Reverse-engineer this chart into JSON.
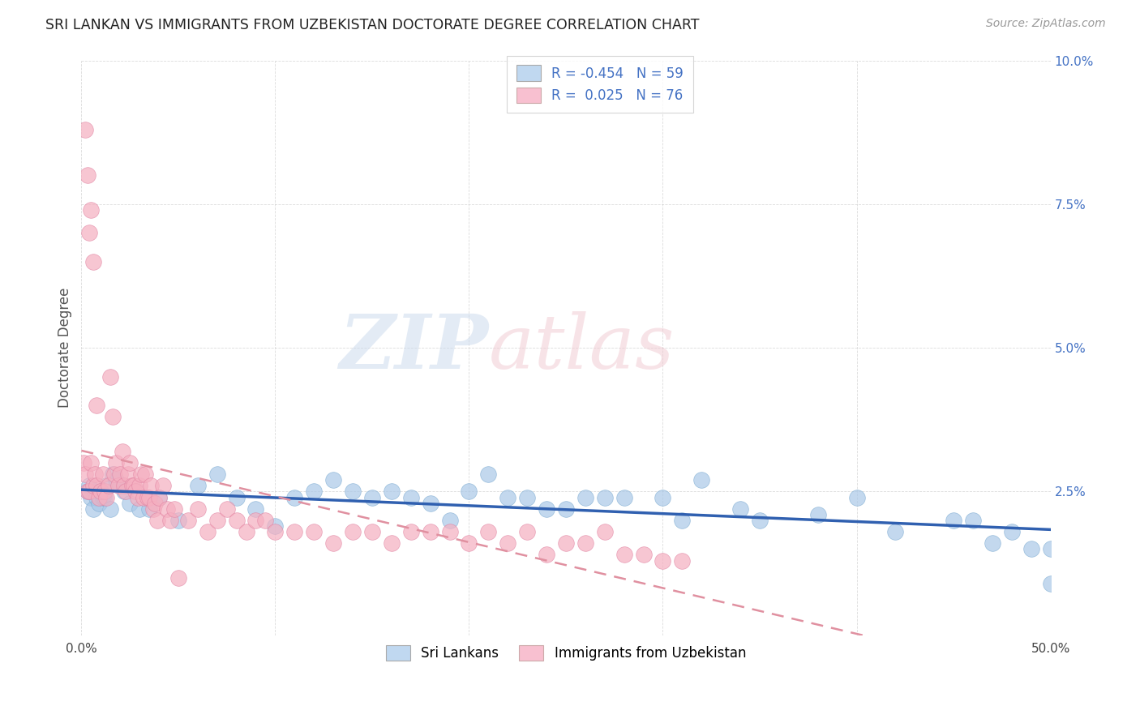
{
  "title": "SRI LANKAN VS IMMIGRANTS FROM UZBEKISTAN DOCTORATE DEGREE CORRELATION CHART",
  "source": "Source: ZipAtlas.com",
  "ylabel": "Doctorate Degree",
  "xlim": [
    0.0,
    0.5
  ],
  "ylim": [
    0.0,
    0.1
  ],
  "xticks": [
    0.0,
    0.1,
    0.2,
    0.3,
    0.4,
    0.5
  ],
  "xticklabels": [
    "0.0%",
    "",
    "",
    "",
    "",
    "50.0%"
  ],
  "yticks": [
    0.0,
    0.025,
    0.05,
    0.075,
    0.1
  ],
  "yticklabels_right": [
    "",
    "2.5%",
    "5.0%",
    "7.5%",
    "10.0%"
  ],
  "sri_lanka_R": -0.454,
  "sri_lanka_N": 59,
  "uzbekistan_R": 0.025,
  "uzbekistan_N": 76,
  "sri_lanka_color": "#aac8e8",
  "uzbekistan_color": "#f5afc0",
  "sri_lanka_edge_color": "#7aaad0",
  "uzbekistan_edge_color": "#e080a0",
  "sri_lanka_line_color": "#3060b0",
  "uzbekistan_line_color": "#e090a0",
  "background_color": "#ffffff",
  "grid_color": "#cccccc",
  "legend_blue_fill": "#c0d8f0",
  "legend_pink_fill": "#f8c0d0",
  "sri_lankans_x": [
    0.003,
    0.004,
    0.005,
    0.006,
    0.007,
    0.008,
    0.009,
    0.01,
    0.011,
    0.012,
    0.013,
    0.015,
    0.016,
    0.018,
    0.02,
    0.022,
    0.025,
    0.03,
    0.035,
    0.04,
    0.05,
    0.06,
    0.07,
    0.08,
    0.09,
    0.1,
    0.11,
    0.12,
    0.13,
    0.14,
    0.15,
    0.16,
    0.17,
    0.18,
    0.19,
    0.2,
    0.21,
    0.22,
    0.23,
    0.24,
    0.25,
    0.26,
    0.27,
    0.28,
    0.3,
    0.31,
    0.32,
    0.34,
    0.35,
    0.38,
    0.4,
    0.42,
    0.45,
    0.46,
    0.47,
    0.48,
    0.49,
    0.5,
    0.5
  ],
  "sri_lankans_y": [
    0.025,
    0.026,
    0.024,
    0.022,
    0.025,
    0.024,
    0.023,
    0.025,
    0.024,
    0.024,
    0.026,
    0.022,
    0.028,
    0.027,
    0.026,
    0.025,
    0.023,
    0.022,
    0.022,
    0.024,
    0.02,
    0.026,
    0.028,
    0.024,
    0.022,
    0.019,
    0.024,
    0.025,
    0.027,
    0.025,
    0.024,
    0.025,
    0.024,
    0.023,
    0.02,
    0.025,
    0.028,
    0.024,
    0.024,
    0.022,
    0.022,
    0.024,
    0.024,
    0.024,
    0.024,
    0.02,
    0.027,
    0.022,
    0.02,
    0.021,
    0.024,
    0.018,
    0.02,
    0.02,
    0.016,
    0.018,
    0.015,
    0.015,
    0.009
  ],
  "uzbekistan_x": [
    0.001,
    0.002,
    0.003,
    0.004,
    0.005,
    0.006,
    0.007,
    0.008,
    0.009,
    0.01,
    0.011,
    0.012,
    0.013,
    0.014,
    0.015,
    0.016,
    0.017,
    0.018,
    0.019,
    0.02,
    0.021,
    0.022,
    0.023,
    0.024,
    0.025,
    0.026,
    0.027,
    0.028,
    0.029,
    0.03,
    0.031,
    0.032,
    0.033,
    0.034,
    0.035,
    0.036,
    0.037,
    0.038,
    0.039,
    0.04,
    0.042,
    0.044,
    0.046,
    0.048,
    0.05,
    0.055,
    0.06,
    0.065,
    0.07,
    0.075,
    0.08,
    0.085,
    0.09,
    0.095,
    0.1,
    0.11,
    0.12,
    0.13,
    0.14,
    0.15,
    0.16,
    0.17,
    0.18,
    0.19,
    0.2,
    0.21,
    0.22,
    0.23,
    0.24,
    0.25,
    0.26,
    0.27,
    0.28,
    0.29,
    0.3,
    0.31
  ],
  "uzbekistan_y": [
    0.03,
    0.028,
    0.025,
    0.025,
    0.03,
    0.026,
    0.028,
    0.026,
    0.024,
    0.025,
    0.028,
    0.025,
    0.024,
    0.026,
    0.045,
    0.038,
    0.028,
    0.03,
    0.026,
    0.028,
    0.032,
    0.026,
    0.025,
    0.028,
    0.03,
    0.026,
    0.026,
    0.025,
    0.024,
    0.026,
    0.028,
    0.024,
    0.028,
    0.024,
    0.024,
    0.026,
    0.022,
    0.023,
    0.02,
    0.024,
    0.026,
    0.022,
    0.02,
    0.022,
    0.01,
    0.02,
    0.022,
    0.018,
    0.02,
    0.022,
    0.02,
    0.018,
    0.02,
    0.02,
    0.018,
    0.018,
    0.018,
    0.016,
    0.018,
    0.018,
    0.016,
    0.018,
    0.018,
    0.018,
    0.016,
    0.018,
    0.016,
    0.018,
    0.014,
    0.016,
    0.016,
    0.018,
    0.014,
    0.014,
    0.013,
    0.013
  ],
  "uz_outliers_x": [
    0.002,
    0.003,
    0.004,
    0.005,
    0.006,
    0.008
  ],
  "uz_outliers_y": [
    0.088,
    0.08,
    0.07,
    0.074,
    0.065,
    0.04
  ]
}
